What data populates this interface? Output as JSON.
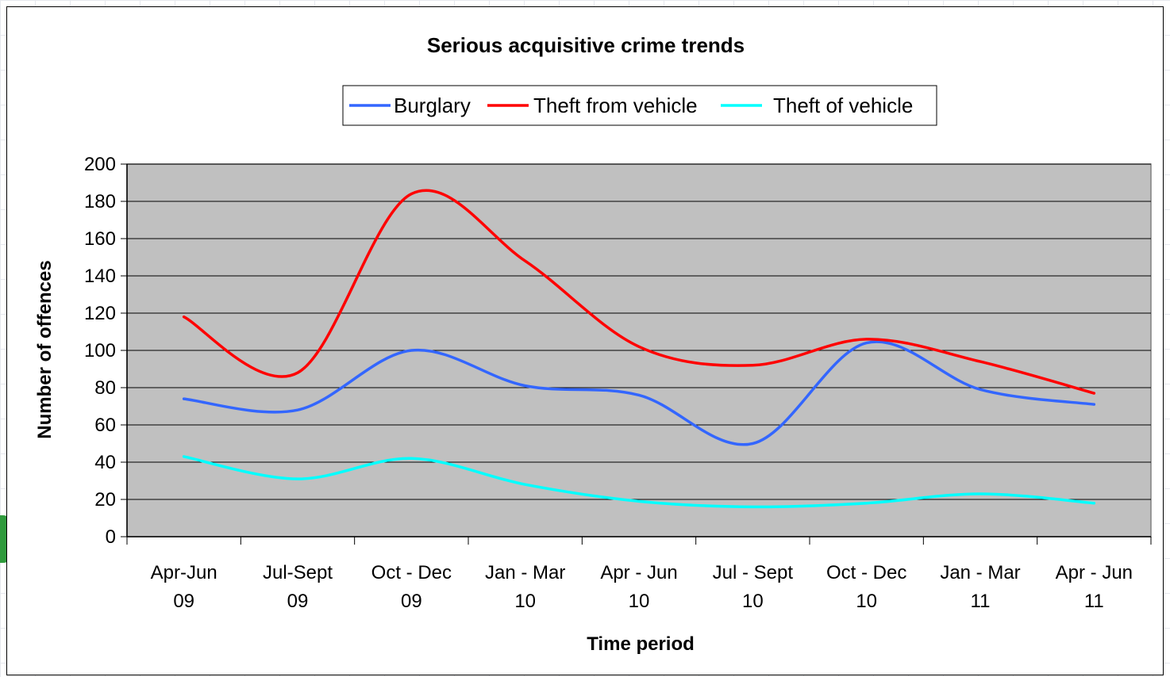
{
  "chart_data": {
    "type": "line",
    "title": "Serious acquisitive crime trends",
    "xlabel": "Time period",
    "ylabel": "Number of offences",
    "ylim": [
      0,
      200
    ],
    "yticks": [
      "0",
      "20",
      "40",
      "60",
      "80",
      "100",
      "120",
      "140",
      "160",
      "180",
      "200"
    ],
    "categories": [
      [
        "Apr-Jun",
        "09"
      ],
      [
        "Jul-Sept",
        "09"
      ],
      [
        "Oct - Dec",
        "09"
      ],
      [
        "Jan - Mar",
        "10"
      ],
      [
        "Apr - Jun",
        "10"
      ],
      [
        "Jul - Sept",
        "10"
      ],
      [
        "Oct - Dec",
        "10"
      ],
      [
        "Jan - Mar",
        "11"
      ],
      [
        "Apr - Jun",
        "11"
      ]
    ],
    "legend_position": "top",
    "grid": true,
    "plot_background": "#c0c0c0",
    "series": [
      {
        "name": "Burglary",
        "color": "#3366ff",
        "values": [
          74,
          68,
          100,
          81,
          76,
          50,
          104,
          79,
          71
        ]
      },
      {
        "name": "Theft from vehicle",
        "color": "#ff0000",
        "values": [
          118,
          88,
          184,
          148,
          102,
          92,
          106,
          94,
          77
        ]
      },
      {
        "name": "Theft of vehicle",
        "color": "#00ffff",
        "values": [
          43,
          31,
          42,
          28,
          19,
          16,
          18,
          23,
          18
        ]
      }
    ]
  }
}
